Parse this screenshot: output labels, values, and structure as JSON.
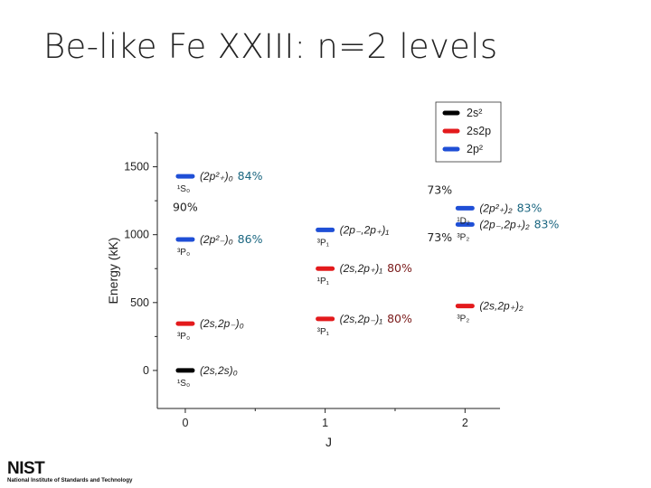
{
  "slide_title": "Be-like Fe XXIII: n=2 levels",
  "logo_text": "NIST",
  "logo_subtitle": "National Institute of Standards and Technology",
  "chart_data": {
    "type": "scatter",
    "xlabel": "J",
    "ylabel": "Energy (kK)",
    "xlim": [
      -0.2,
      2.25
    ],
    "ylim": [
      -280,
      1750
    ],
    "x_ticks": [
      0,
      1,
      2
    ],
    "y_ticks": [
      0,
      500,
      1000,
      1500
    ],
    "legend": [
      {
        "label": "2s²",
        "color": "#000000"
      },
      {
        "label": "2s2p",
        "color": "#e31a1c"
      },
      {
        "label": "2p²",
        "color": "#1f4fd6"
      }
    ],
    "levels": [
      {
        "J": 0,
        "energy": 0,
        "group": "2s²",
        "config": "(2s,2s)₀",
        "term": "¹S₀",
        "purity": ""
      },
      {
        "J": 0,
        "energy": 345,
        "group": "2s2p",
        "config": "(2s,2p₋)₀",
        "term": "³P₀",
        "purity": ""
      },
      {
        "J": 0,
        "energy": 965,
        "group": "2p²",
        "config": "(2p²₋)₀",
        "term": "³P₀",
        "purity": "86%"
      },
      {
        "J": 0,
        "energy": 1430,
        "group": "2p²",
        "config": "(2p²₊)₀",
        "term": "¹S₀",
        "purity": "84%"
      },
      {
        "J": 1,
        "energy": 380,
        "group": "2s2p",
        "config": "(2s,2p₋)₁",
        "term": "³P₁",
        "purity": "80%"
      },
      {
        "J": 1,
        "energy": 750,
        "group": "2s2p",
        "config": "(2s,2p₊)₁",
        "term": "¹P₁",
        "purity": "80%"
      },
      {
        "J": 1,
        "energy": 1035,
        "group": "2p²",
        "config": "(2p₋,2p₊)₁",
        "term": "³P₁",
        "purity": ""
      },
      {
        "J": 2,
        "energy": 475,
        "group": "2s2p",
        "config": "(2s,2p₊)₂",
        "term": "³P₂",
        "purity": ""
      },
      {
        "J": 2,
        "energy": 1075,
        "group": "2p²",
        "config": "(2p₋,2p₊)₂",
        "term": "³P₂",
        "purity": "83%"
      },
      {
        "J": 2,
        "energy": 1195,
        "group": "2p²",
        "config": "(2p²₊)₂",
        "term": "¹D₂",
        "purity": "83%"
      }
    ],
    "annotations": [
      {
        "text": "90%",
        "color": "#222222"
      },
      {
        "text": "73%",
        "color": "#222222"
      },
      {
        "text": "73%",
        "color": "#222222"
      }
    ]
  }
}
